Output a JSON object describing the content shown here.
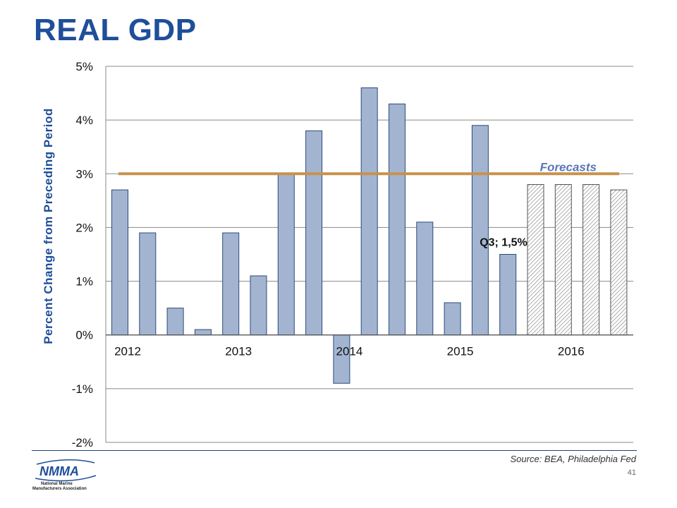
{
  "page": {
    "title": "REAL GDP",
    "source": "Source: BEA, Philadelphia Fed",
    "page_number": "41",
    "logo_text": "NMMA",
    "logo_subtitle_1": "National Marine",
    "logo_subtitle_2": "Manufacturers Association"
  },
  "colors": {
    "title": "#1f4e9a",
    "bar_fill": "#a3b4d1",
    "bar_stroke": "#2c4a7a",
    "forecast_line": "#c8924a",
    "forecast_label": "#5a77b8",
    "axis_label": "#1f4e9a"
  },
  "chart_data": {
    "type": "bar",
    "ylabel": "Percent Change from Preceding Period",
    "ylim": [
      -2,
      5
    ],
    "y_ticks": [
      "5%",
      "4%",
      "3%",
      "2%",
      "1%",
      "0%",
      "-1%",
      "-2%"
    ],
    "y_tick_values": [
      5,
      4,
      3,
      2,
      1,
      0,
      -1,
      -2
    ],
    "x_year_labels": [
      "2012",
      "2013",
      "2014",
      "2015",
      "2016"
    ],
    "x_year_start_index": [
      0,
      4,
      8,
      12,
      16
    ],
    "grid": true,
    "values": [
      2.7,
      1.9,
      0.5,
      0.1,
      1.9,
      1.1,
      3.0,
      3.8,
      -0.9,
      4.6,
      4.3,
      2.1,
      0.6,
      3.9,
      1.5,
      2.8,
      2.8,
      2.8,
      2.7
    ],
    "forecast": [
      false,
      false,
      false,
      false,
      false,
      false,
      false,
      false,
      false,
      false,
      false,
      false,
      false,
      false,
      false,
      true,
      true,
      true,
      true
    ],
    "forecast_line_value": 3.0,
    "forecast_label": "Forecasts",
    "annotation": {
      "text": "Q3; 1,5%",
      "bar_index": 14
    }
  }
}
